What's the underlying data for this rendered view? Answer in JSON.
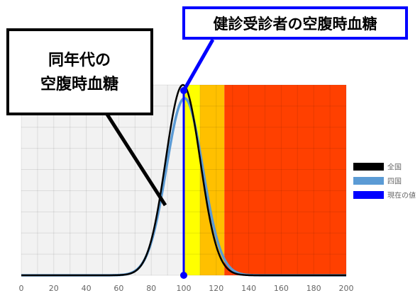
{
  "chart_data": {
    "type": "area",
    "title": "",
    "xlabel": "",
    "ylabel": "",
    "xlim": [
      0,
      200
    ],
    "x_ticks": [
      0,
      20,
      40,
      60,
      80,
      100,
      120,
      140,
      160,
      180,
      200
    ],
    "grid": true,
    "legend_position": "right",
    "zones": [
      {
        "from": 100,
        "to": 110,
        "color": "#ffff00"
      },
      {
        "from": 110,
        "to": 125,
        "color": "#ffc000"
      },
      {
        "from": 125,
        "to": 200,
        "color": "#ff4000"
      }
    ],
    "series": [
      {
        "name": "全国",
        "color": "#000000",
        "mean": 99.5,
        "sd": 10.6,
        "peak": 1.0
      },
      {
        "name": "四国",
        "color": "#5b9bd5",
        "mean": 100.5,
        "sd": 11.2,
        "peak": 0.93
      }
    ],
    "current_value": {
      "name": "現在の値",
      "x": 100,
      "color": "#0000ff"
    }
  },
  "callouts": {
    "left": "同年代の\n空腹時血糖",
    "right": "健診受診者の空腹時血糖"
  }
}
